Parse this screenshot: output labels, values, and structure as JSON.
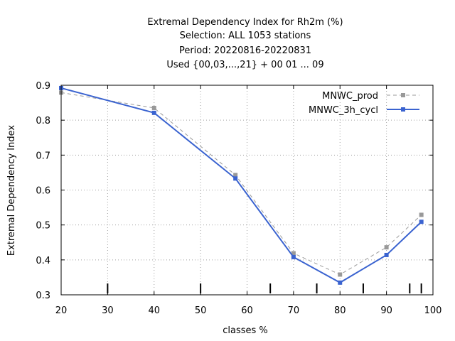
{
  "chart_data": {
    "type": "line",
    "title_lines": [
      "Extremal Dependency Index  for Rh2m (%)",
      "Selection: ALL   1053 stations",
      "Period: 20220816-20220831",
      "Used {00,03,...,21} + 00 01 ... 09"
    ],
    "xlabel": "classes %",
    "ylabel": "Extremal Dependency Index",
    "xlim": [
      20,
      100
    ],
    "ylim": [
      0.3,
      0.9
    ],
    "x_ticks": [
      20,
      30,
      40,
      50,
      60,
      70,
      80,
      90,
      100
    ],
    "x_tick_labels": [
      "20",
      "30",
      "40",
      "50",
      "60",
      "70",
      "80",
      "90",
      "100"
    ],
    "y_ticks": [
      0.3,
      0.4,
      0.5,
      0.6,
      0.7,
      0.8,
      0.9
    ],
    "y_tick_labels": [
      "0.3",
      "0.4",
      "0.5",
      "0.6",
      "0.7",
      "0.8",
      "0.9"
    ],
    "grid": true,
    "legend_position": "top-right",
    "bottom_markers_x": [
      30,
      50,
      65,
      75,
      85,
      95,
      97.5
    ],
    "series": [
      {
        "name": "MNWC_prod",
        "color": "#999999",
        "dashed": true,
        "x": [
          20,
          40,
          57.5,
          70,
          80,
          90,
          97.5
        ],
        "values": [
          0.879,
          0.835,
          0.643,
          0.419,
          0.358,
          0.436,
          0.529
        ]
      },
      {
        "name": "MNWC_3h_cycl",
        "color": "#3a63d0",
        "dashed": false,
        "x": [
          20,
          40,
          57.5,
          70,
          80,
          90,
          97.5
        ],
        "values": [
          0.892,
          0.821,
          0.633,
          0.408,
          0.335,
          0.414,
          0.509
        ]
      }
    ]
  }
}
